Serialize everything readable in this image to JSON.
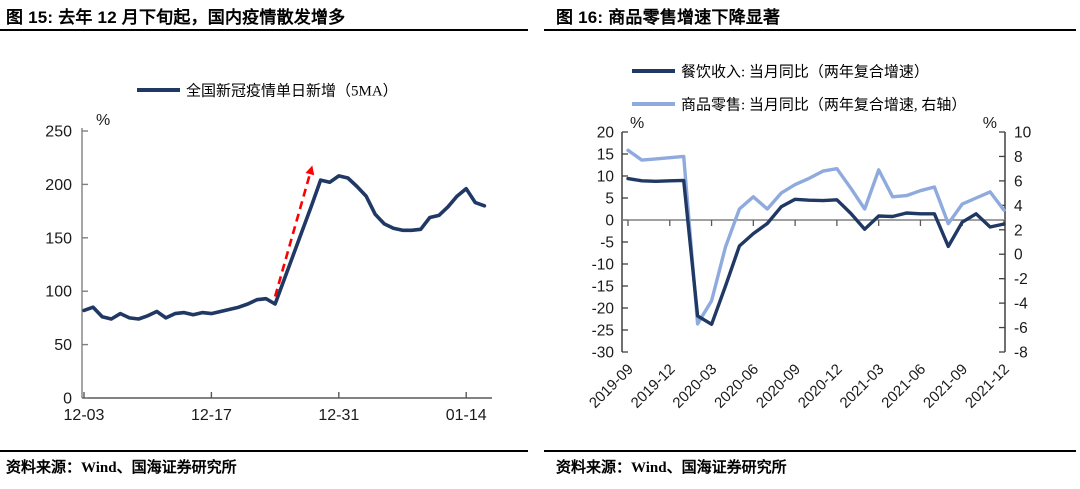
{
  "page": {
    "background": "#ffffff"
  },
  "colors": {
    "dark_blue": "#203864",
    "light_blue": "#8FAADC",
    "arrow_red": "#FF0000",
    "axis_gray": "#808080",
    "text_black": "#000000"
  },
  "figures": [
    {
      "title": "图 15:  去年 12 月下旬起，国内疫情散发增多",
      "source": "资料来源：Wind、国海证券研究所",
      "chart_data": {
        "type": "line",
        "title": "去年 12 月下旬起，国内疫情散发增多",
        "ylabel": "%",
        "ylim": [
          0,
          250
        ],
        "yticks": [
          0,
          50,
          100,
          150,
          200,
          250
        ],
        "grid": false,
        "legend_position": "top",
        "x_ticks": [
          "12-03",
          "12-17",
          "12-31",
          "01-14"
        ],
        "x": [
          "12-03",
          "12-04",
          "12-05",
          "12-06",
          "12-07",
          "12-08",
          "12-09",
          "12-10",
          "12-11",
          "12-12",
          "12-13",
          "12-14",
          "12-15",
          "12-16",
          "12-17",
          "12-18",
          "12-19",
          "12-20",
          "12-21",
          "12-22",
          "12-23",
          "12-24",
          "12-25",
          "12-26",
          "12-27",
          "12-28",
          "12-29",
          "12-30",
          "12-31",
          "01-01",
          "01-02",
          "01-03",
          "01-04",
          "01-05",
          "01-06",
          "01-07",
          "01-08",
          "01-09",
          "01-10",
          "01-11",
          "01-12",
          "01-13",
          "01-14",
          "01-15",
          "01-16"
        ],
        "series": [
          {
            "name": "全国新冠疫情单日新增（5MA）",
            "color": "#203864",
            "values": [
              82,
              85,
              76,
              74,
              79,
              75,
              74,
              77,
              81,
              75,
              79,
              80,
              78,
              80,
              79,
              81,
              83,
              85,
              88,
              92,
              93,
              88,
              111,
              134,
              157,
              180,
              204,
              202,
              208,
              206,
              198,
              189,
              172,
              163,
              159,
              157,
              157,
              158,
              169,
              171,
              179,
              189,
              196,
              183,
              180
            ]
          }
        ],
        "annotation": {
          "shape": "dashed-arrow",
          "color": "#FF0000",
          "from": {
            "x": "12-24",
            "y": 95
          },
          "to": {
            "x": "12-28",
            "y": 215
          }
        }
      }
    },
    {
      "title": "图 16:  商品零售增速下降显著",
      "source": "资料来源：Wind、国海证券研究所",
      "chart_data": {
        "type": "line",
        "title": "商品零售增速下降显著",
        "grid": false,
        "legend_position": "top",
        "left_axis": {
          "label": "%",
          "lim": [
            -30,
            20
          ],
          "ticks": [
            -30,
            -25,
            -20,
            -15,
            -10,
            -5,
            0,
            5,
            10,
            15,
            20
          ]
        },
        "right_axis": {
          "label": "%",
          "lim": [
            -8,
            10
          ],
          "ticks": [
            -8,
            -6,
            -4,
            -2,
            0,
            2,
            4,
            6,
            8,
            10
          ]
        },
        "x_ticks": [
          "2019-09",
          "2019-12",
          "2020-03",
          "2020-06",
          "2020-09",
          "2020-12",
          "2021-03",
          "2021-06",
          "2021-09",
          "2021-12"
        ],
        "x": [
          "2019-09",
          "2019-10",
          "2019-11",
          "2019-12",
          "2020-01",
          "2020-02",
          "2020-03",
          "2020-04",
          "2020-05",
          "2020-06",
          "2020-07",
          "2020-08",
          "2020-09",
          "2020-10",
          "2020-11",
          "2020-12",
          "2021-01",
          "2021-02",
          "2021-03",
          "2021-04",
          "2021-05",
          "2021-06",
          "2021-07",
          "2021-08",
          "2021-09",
          "2021-10",
          "2021-11",
          "2021-12"
        ],
        "series": [
          {
            "name": "餐饮收入: 当月同比（两年复合增速）",
            "axis": "left",
            "color": "#203864",
            "values": [
              9.4,
              8.9,
              8.8,
              8.9,
              9.0,
              -21.8,
              -23.7,
              -15.0,
              -5.9,
              -3.1,
              -0.8,
              3.0,
              4.7,
              4.5,
              4.4,
              4.6,
              1.5,
              -2.1,
              0.9,
              0.8,
              1.6,
              1.4,
              1.4,
              -6.0,
              -0.5,
              1.4,
              -1.6,
              -0.9
            ]
          },
          {
            "name": "商品零售: 当月同比（两年复合增速, 右轴）",
            "axis": "right",
            "color": "#8FAADC",
            "values": [
              8.5,
              7.7,
              7.8,
              7.9,
              8.0,
              -5.7,
              -3.8,
              0.6,
              3.7,
              4.7,
              3.7,
              5.0,
              5.7,
              6.2,
              6.8,
              7.0,
              5.4,
              3.7,
              6.9,
              4.7,
              4.8,
              5.2,
              5.5,
              2.5,
              4.1,
              4.6,
              5.1,
              3.6
            ]
          }
        ]
      }
    }
  ]
}
